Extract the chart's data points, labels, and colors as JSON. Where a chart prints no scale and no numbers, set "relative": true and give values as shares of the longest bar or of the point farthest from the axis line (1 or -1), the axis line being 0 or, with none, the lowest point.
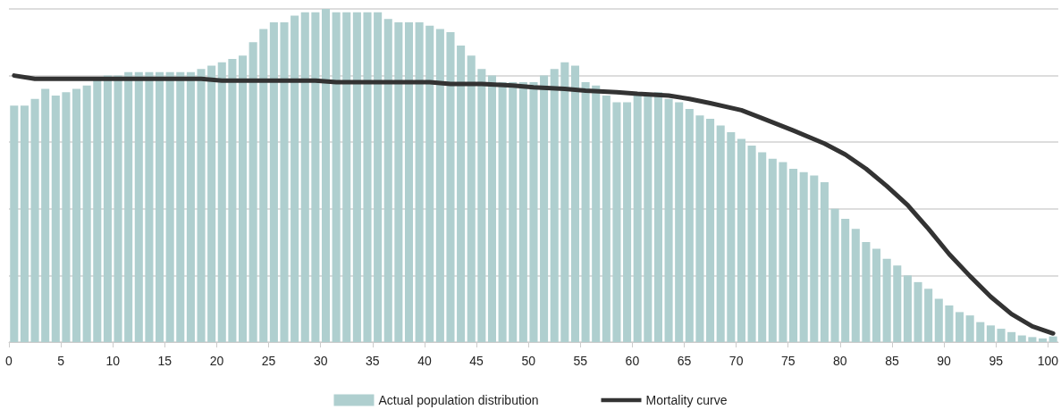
{
  "chart_data": {
    "type": "histogram",
    "relative": true,
    "bins": [
      0,
      1,
      2,
      3,
      4,
      5,
      6,
      7,
      8,
      9,
      10,
      11,
      12,
      13,
      14,
      15,
      16,
      17,
      18,
      19,
      20,
      21,
      22,
      23,
      24,
      25,
      26,
      27,
      28,
      29,
      30,
      31,
      32,
      33,
      34,
      35,
      36,
      37,
      38,
      39,
      40,
      41,
      42,
      43,
      44,
      45,
      46,
      47,
      48,
      49,
      50,
      51,
      52,
      53,
      54,
      55,
      56,
      57,
      58,
      59,
      60,
      61,
      62,
      63,
      64,
      65,
      66,
      67,
      68,
      69,
      70,
      71,
      72,
      73,
      74,
      75,
      76,
      77,
      78,
      79,
      80,
      81,
      82,
      83,
      84,
      85,
      86,
      87,
      88,
      89,
      90,
      91,
      92,
      93,
      94,
      95,
      96,
      97,
      98,
      99,
      100,
      101
    ],
    "xlim": [
      0,
      101
    ],
    "xticks": [
      0,
      5,
      10,
      15,
      20,
      25,
      30,
      35,
      40,
      45,
      50,
      55,
      60,
      65,
      70,
      75,
      80,
      85,
      90,
      95,
      100
    ],
    "series": [
      {
        "name": "Actual population distribution",
        "color": "#afcfcf",
        "values": [
          0.71,
          0.71,
          0.73,
          0.76,
          0.74,
          0.75,
          0.76,
          0.77,
          0.79,
          0.8,
          0.8,
          0.81,
          0.81,
          0.81,
          0.81,
          0.81,
          0.81,
          0.81,
          0.82,
          0.83,
          0.84,
          0.85,
          0.86,
          0.9,
          0.94,
          0.96,
          0.96,
          0.98,
          0.99,
          0.99,
          1,
          0.99,
          0.99,
          0.99,
          0.99,
          0.99,
          0.97,
          0.96,
          0.96,
          0.96,
          0.95,
          0.94,
          0.93,
          0.89,
          0.86,
          0.82,
          0.8,
          0.78,
          0.78,
          0.78,
          0.78,
          0.8,
          0.82,
          0.84,
          0.83,
          0.78,
          0.77,
          0.74,
          0.72,
          0.72,
          0.74,
          0.74,
          0.75,
          0.73,
          0.72,
          0.7,
          0.68,
          0.67,
          0.65,
          0.63,
          0.61,
          0.59,
          0.57,
          0.55,
          0.54,
          0.52,
          0.51,
          0.5,
          0.48,
          0.4,
          0.37,
          0.34,
          0.3,
          0.28,
          0.25,
          0.23,
          0.2,
          0.18,
          0.16,
          0.13,
          0.11,
          0.09,
          0.08,
          0.06,
          0.05,
          0.04,
          0.03,
          0.02,
          0.015,
          0.011,
          0.017
        ]
      },
      {
        "type": "line",
        "name": "Mortality curve",
        "color": "#333333",
        "marker": "none",
        "line_style": "solid",
        "x": [
          0.5,
          2.5,
          18.5,
          20.5,
          29.5,
          31.5,
          40.5,
          42.5,
          45.5,
          48.5,
          50.5,
          53.5,
          55.5,
          58.5,
          60.5,
          63.5,
          65.5,
          67.5,
          70.5,
          72.5,
          75.5,
          78.5,
          80.5,
          82.5,
          84.5,
          86.5,
          88.5,
          90.5,
          92.5,
          94.5,
          96.5,
          98.5,
          100.5
        ],
        "values": [
          0.8,
          0.79,
          0.79,
          0.785,
          0.785,
          0.78,
          0.78,
          0.775,
          0.775,
          0.77,
          0.765,
          0.76,
          0.755,
          0.75,
          0.745,
          0.74,
          0.73,
          0.717,
          0.696,
          0.672,
          0.635,
          0.596,
          0.563,
          0.52,
          0.468,
          0.411,
          0.34,
          0.264,
          0.198,
          0.136,
          0.084,
          0.047,
          0.026
        ]
      }
    ],
    "grid": "y",
    "legend": "bottom",
    "tick_labels": "x"
  }
}
